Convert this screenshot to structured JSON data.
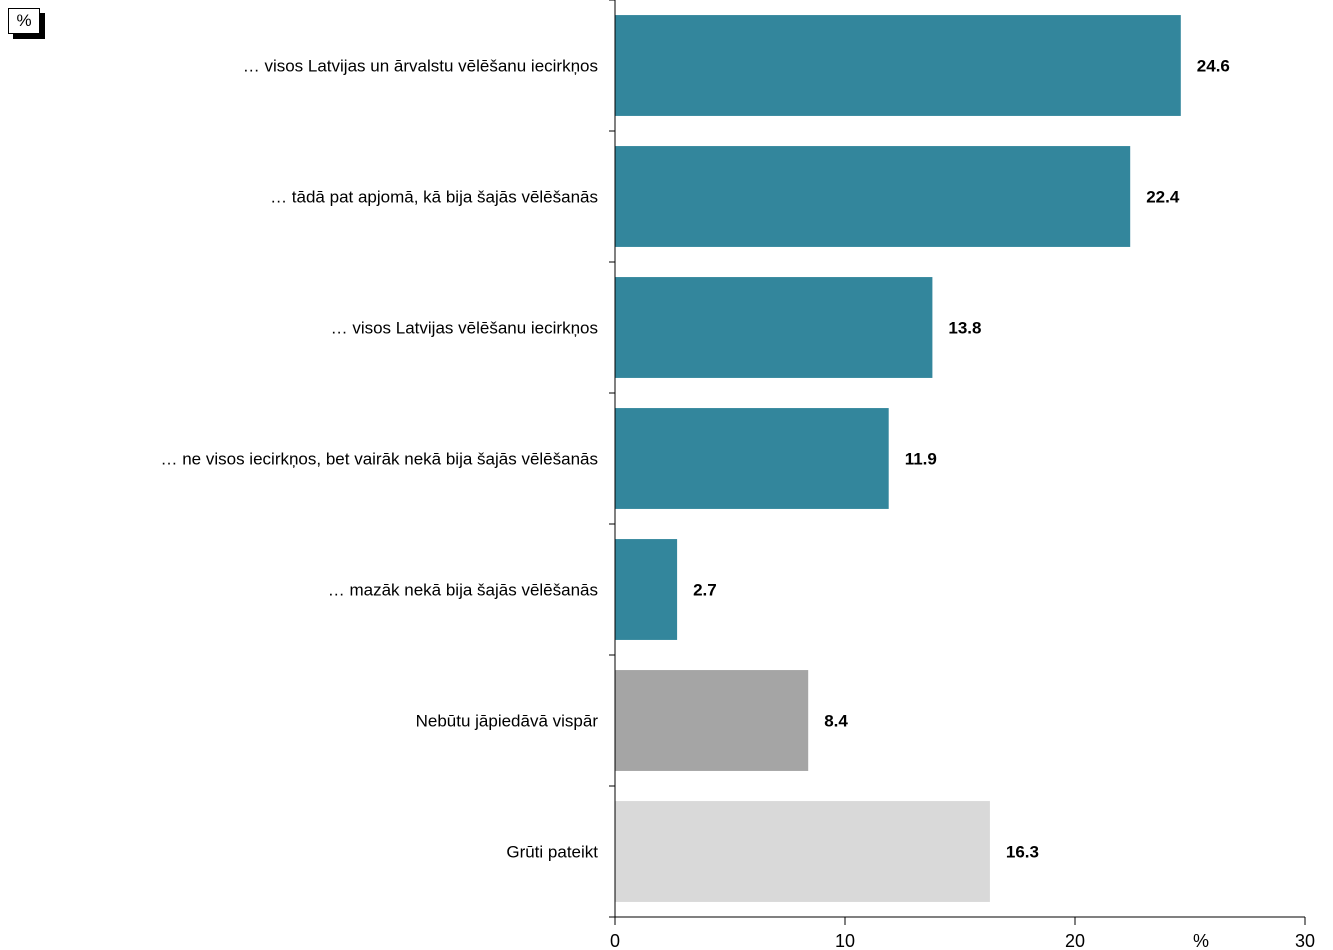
{
  "unit_box": "%",
  "chart_data": {
    "type": "bar",
    "orientation": "horizontal",
    "categories": [
      "… visos Latvijas un ārvalstu vēlēšanu iecirkņos",
      "… tādā pat apjomā, kā bija šajās vēlēšanās",
      "… visos Latvijas vēlēšanu iecirkņos",
      "… ne visos iecirkņos, bet vairāk nekā bija šajās vēlēšanās",
      "… mazāk nekā bija šajās vēlēšanās",
      "Nebūtu jāpiedāvā vispār",
      "Grūti pateikt"
    ],
    "values": [
      24.6,
      22.4,
      13.8,
      11.9,
      2.7,
      8.4,
      16.3
    ],
    "value_labels": [
      "24.6",
      "22.4",
      "13.8",
      "11.9",
      "2.7",
      "8.4",
      "16.3"
    ],
    "bar_colors": [
      "#33869c",
      "#33869c",
      "#33869c",
      "#33869c",
      "#33869c",
      "#a5a5a5",
      "#d9d9d9"
    ],
    "xlim": [
      0,
      30
    ],
    "xticks": [
      {
        "value": 0,
        "label": "0"
      },
      {
        "value": 10,
        "label": "10"
      },
      {
        "value": 20,
        "label": "20"
      },
      {
        "value": 30,
        "label": "30"
      }
    ],
    "xlabel": "%",
    "grid": false
  }
}
